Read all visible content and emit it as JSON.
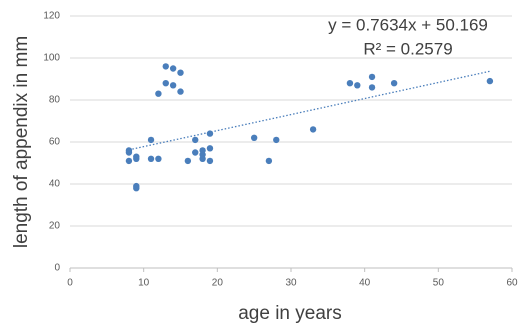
{
  "chart_data": {
    "type": "scatter",
    "x_label": "age in years",
    "y_label": "length of appendix in mm",
    "xlim": [
      0,
      60
    ],
    "xticks": [
      0,
      10,
      20,
      30,
      40,
      50,
      60
    ],
    "ylim": [
      0,
      120
    ],
    "yticks": [
      0,
      20,
      40,
      60,
      80,
      100,
      120
    ],
    "grid": true,
    "series": [
      {
        "color": "#4a7ebb",
        "x": [
          8,
          8,
          8,
          9,
          9,
          9,
          9,
          11,
          11,
          12,
          12,
          13,
          13,
          14,
          14,
          15,
          15,
          16,
          17,
          17,
          18,
          18,
          18,
          19,
          19,
          19,
          25,
          27,
          28,
          33,
          38,
          39,
          41,
          41,
          44,
          57
        ],
        "values": [
          56,
          55,
          51,
          53,
          52,
          39,
          38,
          61,
          52,
          52,
          83,
          96,
          88,
          95,
          87,
          93,
          84,
          51,
          61,
          55,
          56,
          54,
          52,
          57,
          64,
          51,
          62,
          51,
          61,
          66,
          88,
          87,
          91,
          86,
          88,
          89
        ]
      }
    ],
    "trendline": {
      "slope": 0.7634,
      "intercept": 50.169,
      "equation": "y = 0.7634x + 50.169",
      "r_squared": "R² = 0.2579"
    }
  }
}
